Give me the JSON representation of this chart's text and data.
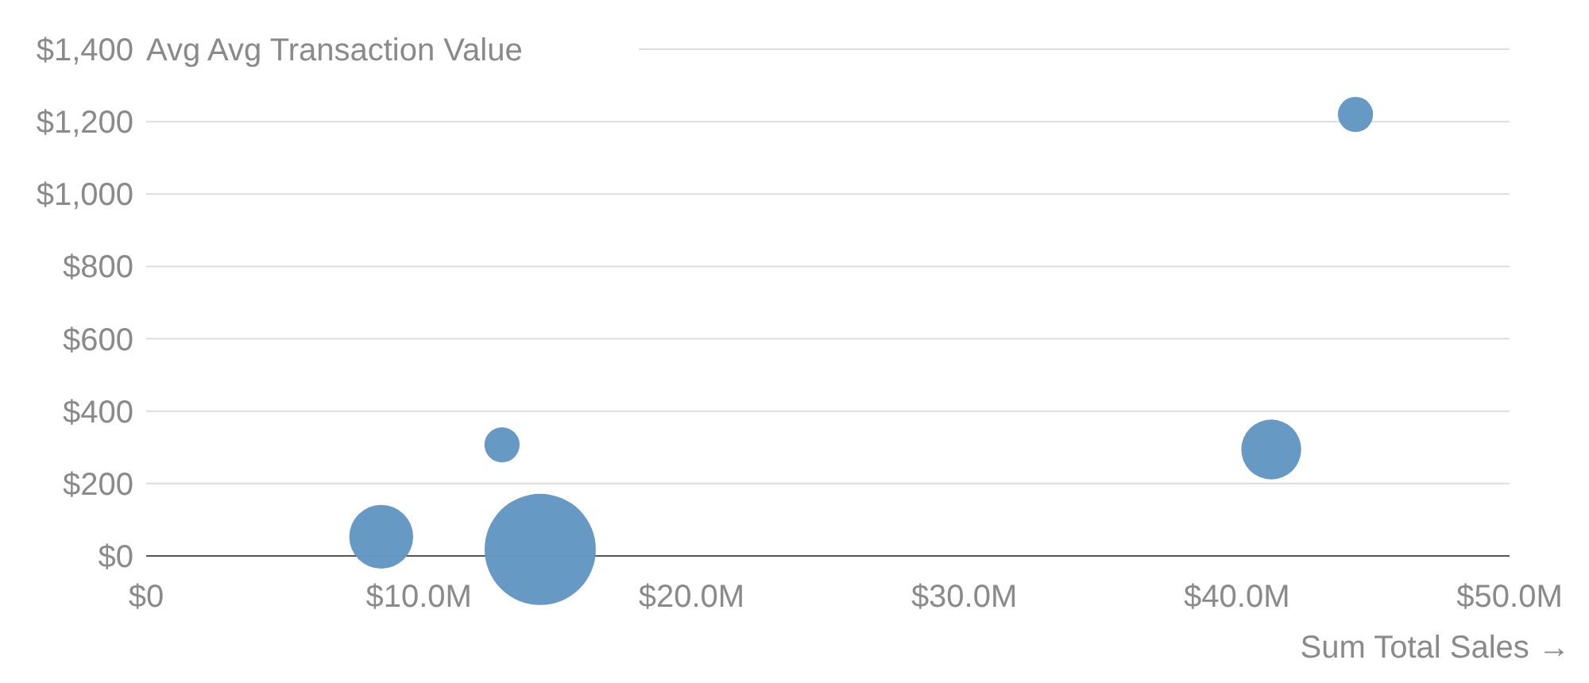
{
  "chart_data": {
    "type": "bubble",
    "xlabel": "Sum Total Sales →",
    "ylabel": "Avg Avg Transaction Value",
    "x": [
      8.62,
      13.05,
      14.45,
      41.26,
      44.35
    ],
    "values": [
      53,
      307,
      18,
      294,
      1220
    ],
    "sizes": [
      0.33,
      0.1,
      1,
      0.29,
      0.1
    ],
    "color": "#6497c4",
    "xlim": [
      0,
      50
    ],
    "ylim": [
      0,
      1400
    ],
    "xticks": [
      {
        "value": 0,
        "label": "$0"
      },
      {
        "value": 10,
        "label": "$10.0M"
      },
      {
        "value": 20,
        "label": "$20.0M"
      },
      {
        "value": 30,
        "label": "$30.0M"
      },
      {
        "value": 40,
        "label": "$40.0M"
      },
      {
        "value": 50,
        "label": "$50.0M"
      }
    ],
    "yticks": [
      {
        "value": 0,
        "label": "$0"
      },
      {
        "value": 200,
        "label": "$200"
      },
      {
        "value": 400,
        "label": "$400"
      },
      {
        "value": 600,
        "label": "$600"
      },
      {
        "value": 800,
        "label": "$800"
      },
      {
        "value": 1000,
        "label": "$1,000"
      },
      {
        "value": 1200,
        "label": "$1,200"
      },
      {
        "value": 1400,
        "label": "$1,400"
      }
    ],
    "grid": "y"
  }
}
